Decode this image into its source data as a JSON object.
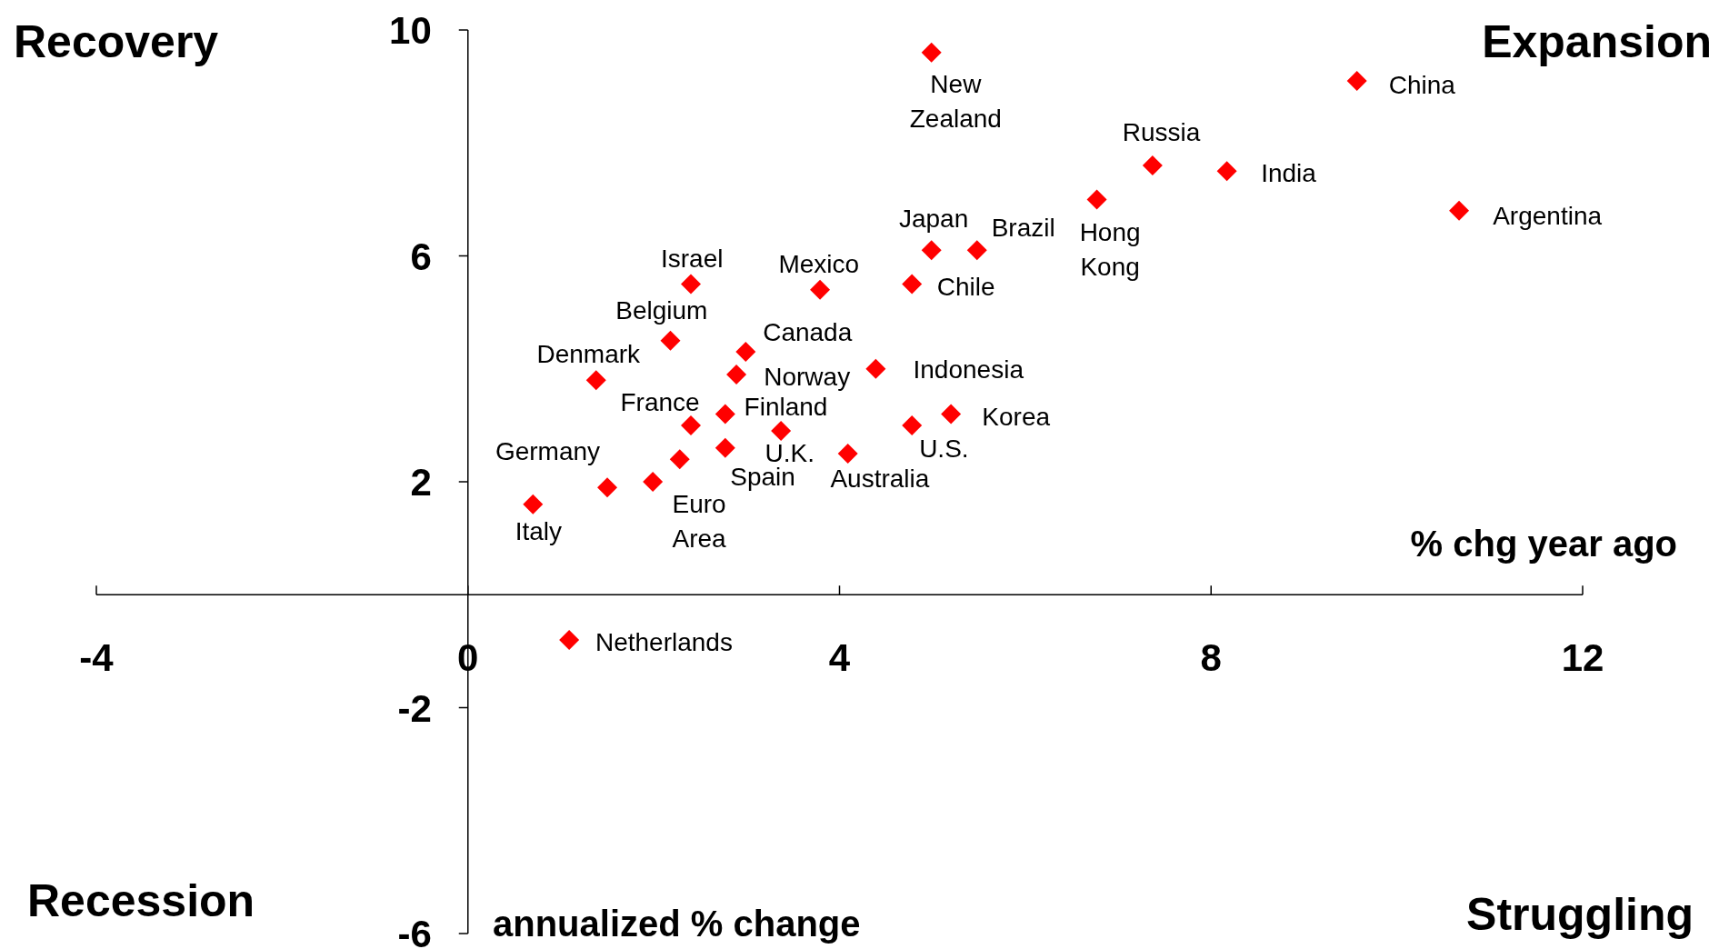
{
  "chart_data": {
    "type": "scatter",
    "xlabel": "% chg year ago",
    "ylabel": "annualized % change",
    "annotations": [
      "Recovery",
      "Expansion",
      "Recession",
      "Struggling",
      {
        "text": "New Zealand",
        "x": 4.99,
        "y": 9.6
      },
      {
        "text": "China",
        "x": 9.57,
        "y": 9.1
      },
      {
        "text": "Russia",
        "x": 7.37,
        "y": 7.6
      },
      {
        "text": "India",
        "x": 8.17,
        "y": 7.5
      },
      {
        "text": "Argentina",
        "x": 10.67,
        "y": 6.8
      },
      {
        "text": "Hong Kong",
        "x": 6.77,
        "y": 7.0
      },
      {
        "text": "Japan",
        "x": 4.99,
        "y": 6.1
      },
      {
        "text": "Brazil",
        "x": 5.48,
        "y": 6.1
      },
      {
        "text": "Chile",
        "x": 4.78,
        "y": 5.5
      },
      {
        "text": "Mexico",
        "x": 3.79,
        "y": 5.4
      },
      {
        "text": "Israel",
        "x": 2.4,
        "y": 5.5
      },
      {
        "text": "Belgium",
        "x": 2.18,
        "y": 4.5
      },
      {
        "text": "Canada",
        "x": 2.99,
        "y": 4.3
      },
      {
        "text": "Denmark",
        "x": 1.38,
        "y": 3.8
      },
      {
        "text": "Norway",
        "x": 2.89,
        "y": 3.9
      },
      {
        "text": "Indonesia",
        "x": 4.39,
        "y": 4.0
      },
      {
        "text": "France",
        "x": 2.4,
        "y": 3.0
      },
      {
        "text": "Finland",
        "x": 2.77,
        "y": 3.2
      },
      {
        "text": "U.K.",
        "x": 3.37,
        "y": 2.9
      },
      {
        "text": "Korea",
        "x": 5.2,
        "y": 3.2
      },
      {
        "text": "U.S.",
        "x": 4.78,
        "y": 3.0
      },
      {
        "text": "Spain",
        "x": 2.77,
        "y": 2.6
      },
      {
        "text": "Australia",
        "x": 4.09,
        "y": 2.5
      },
      {
        "text": "Germany",
        "x": 1.5,
        "y": 1.9
      },
      {
        "text": "Euro Area",
        "x": 1.99,
        "y": 2.0
      },
      {
        "text": "Italy",
        "x": 0.7,
        "y": 1.6
      },
      {
        "text": "Netherlands",
        "x": 1.09,
        "y": -0.8
      }
    ],
    "x": [
      4.99,
      9.57,
      7.37,
      8.17,
      10.67,
      6.77,
      4.99,
      5.48,
      4.78,
      3.79,
      2.4,
      2.18,
      2.99,
      1.38,
      2.89,
      4.39,
      2.4,
      2.77,
      3.37,
      5.2,
      4.78,
      2.77,
      4.09,
      1.5,
      1.99,
      0.7,
      1.09,
      2.28
    ],
    "series": [
      {
        "color": "#ff0000",
        "values": [
          9.6,
          9.1,
          7.6,
          7.5,
          6.8,
          7.0,
          6.1,
          6.1,
          5.5,
          5.4,
          5.5,
          4.5,
          4.3,
          3.8,
          3.9,
          4.0,
          3.0,
          3.2,
          2.9,
          3.2,
          3.0,
          2.6,
          2.5,
          1.9,
          2.0,
          1.6,
          -0.8,
          2.4
        ]
      }
    ],
    "xlim": [
      -4,
      12
    ],
    "ylim": [
      -6,
      10
    ],
    "xticks": [
      -4,
      0,
      4,
      8,
      12
    ],
    "yticks": [
      -6,
      -2,
      2,
      6,
      10
    ],
    "marker": "diamond"
  }
}
